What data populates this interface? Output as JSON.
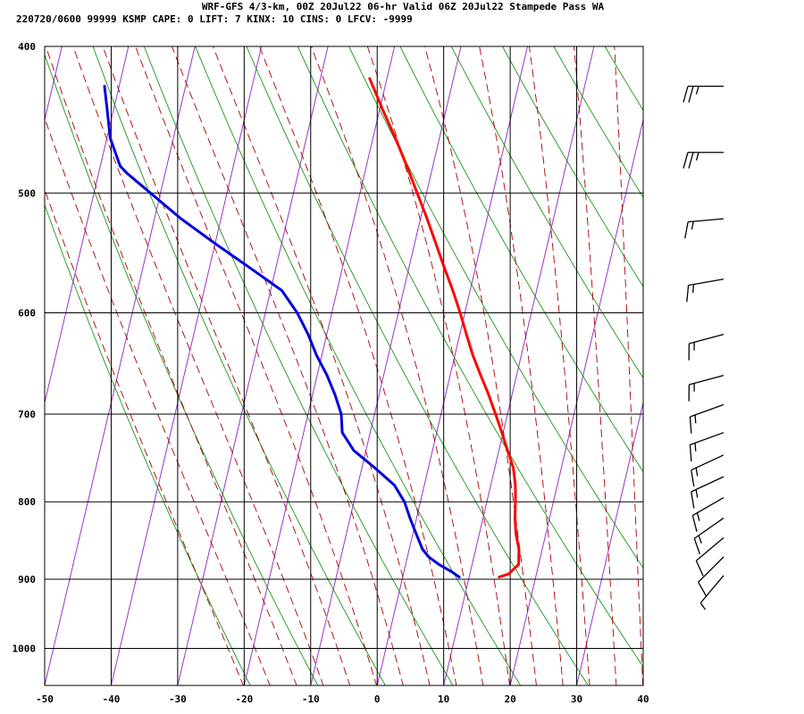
{
  "header": {
    "line1": "WRF-GFS 4/3-km, 00Z 20Jul22 06-hr Valid 06Z 20Jul22 Stampede Pass WA",
    "line2": "220720/0600 99999  KSMP    CAPE:     0 LIFT:     7 KINX:    10 CINS:     0 LFCV: -9999"
  },
  "chart_data": {
    "type": "line",
    "subtype": "skew-t log-p sounding",
    "x_ticks": [
      -50,
      -40,
      -30,
      -20,
      -10,
      0,
      10,
      20,
      30,
      40
    ],
    "p_ticks": [
      400,
      500,
      600,
      700,
      800,
      900,
      1000
    ],
    "xlim": [
      -50,
      40
    ],
    "plim": [
      400,
      1040
    ],
    "log_pressure_axis": true,
    "grid": true,
    "colors": {
      "temperature": "#ff0000",
      "dewpoint": "#0000dd",
      "isotherm": "#9933cc",
      "dry_adiabat": "#008800",
      "moist_adiabat": "#aa0000",
      "grid": "#000000"
    },
    "series": [
      {
        "points": [
          {
            "p": 897,
            "t": 14.5
          },
          {
            "p": 893,
            "t": 15.8
          },
          {
            "p": 880,
            "t": 17.0
          },
          {
            "p": 860,
            "t": 16.5
          },
          {
            "p": 840,
            "t": 15.5
          },
          {
            "p": 820,
            "t": 14.8
          },
          {
            "p": 800,
            "t": 14.3
          },
          {
            "p": 780,
            "t": 13.7
          },
          {
            "p": 760,
            "t": 12.8
          },
          {
            "p": 740,
            "t": 11.3
          },
          {
            "p": 720,
            "t": 9.8
          },
          {
            "p": 700,
            "t": 8.2
          },
          {
            "p": 680,
            "t": 6.5
          },
          {
            "p": 660,
            "t": 4.6
          },
          {
            "p": 640,
            "t": 2.7
          },
          {
            "p": 620,
            "t": 1.0
          },
          {
            "p": 600,
            "t": -0.7
          },
          {
            "p": 580,
            "t": -2.6
          },
          {
            "p": 560,
            "t": -4.7
          },
          {
            "p": 540,
            "t": -6.8
          },
          {
            "p": 520,
            "t": -9.0
          },
          {
            "p": 500,
            "t": -11.4
          },
          {
            "p": 480,
            "t": -13.9
          },
          {
            "p": 460,
            "t": -16.6
          },
          {
            "p": 440,
            "t": -19.6
          },
          {
            "p": 420,
            "t": -22.6
          }
        ]
      },
      {
        "points": [
          {
            "p": 897,
            "t": 8.5
          },
          {
            "p": 890,
            "t": 7.2
          },
          {
            "p": 880,
            "t": 5.0
          },
          {
            "p": 870,
            "t": 3.2
          },
          {
            "p": 860,
            "t": 2.0
          },
          {
            "p": 840,
            "t": 0.5
          },
          {
            "p": 820,
            "t": -1.0
          },
          {
            "p": 800,
            "t": -2.4
          },
          {
            "p": 780,
            "t": -4.5
          },
          {
            "p": 760,
            "t": -8.0
          },
          {
            "p": 740,
            "t": -11.8
          },
          {
            "p": 720,
            "t": -14.2
          },
          {
            "p": 700,
            "t": -15.0
          },
          {
            "p": 680,
            "t": -16.6
          },
          {
            "p": 660,
            "t": -18.5
          },
          {
            "p": 640,
            "t": -20.8
          },
          {
            "p": 620,
            "t": -22.8
          },
          {
            "p": 600,
            "t": -25.2
          },
          {
            "p": 580,
            "t": -28.3
          },
          {
            "p": 560,
            "t": -34.0
          },
          {
            "p": 540,
            "t": -40.0
          },
          {
            "p": 520,
            "t": -46.0
          },
          {
            "p": 500,
            "t": -51.5
          },
          {
            "p": 485,
            "t": -55.8
          },
          {
            "p": 480,
            "t": -57.0
          },
          {
            "p": 460,
            "t": -59.5
          },
          {
            "p": 440,
            "t": -61.0
          },
          {
            "p": 425,
            "t": -62.2
          }
        ]
      }
    ],
    "wind_barbs": [
      {
        "p": 425,
        "dir": 270,
        "spd": 25
      },
      {
        "p": 470,
        "dir": 270,
        "spd": 25
      },
      {
        "p": 520,
        "dir": 265,
        "spd": 15
      },
      {
        "p": 570,
        "dir": 260,
        "spd": 15
      },
      {
        "p": 620,
        "dir": 255,
        "spd": 15
      },
      {
        "p": 660,
        "dir": 255,
        "spd": 15
      },
      {
        "p": 690,
        "dir": 250,
        "spd": 15
      },
      {
        "p": 720,
        "dir": 250,
        "spd": 15
      },
      {
        "p": 745,
        "dir": 245,
        "spd": 15
      },
      {
        "p": 770,
        "dir": 245,
        "spd": 15
      },
      {
        "p": 795,
        "dir": 240,
        "spd": 15
      },
      {
        "p": 820,
        "dir": 235,
        "spd": 15
      },
      {
        "p": 845,
        "dir": 230,
        "spd": 10
      },
      {
        "p": 870,
        "dir": 225,
        "spd": 10
      },
      {
        "p": 895,
        "dir": 220,
        "spd": 5
      }
    ]
  }
}
